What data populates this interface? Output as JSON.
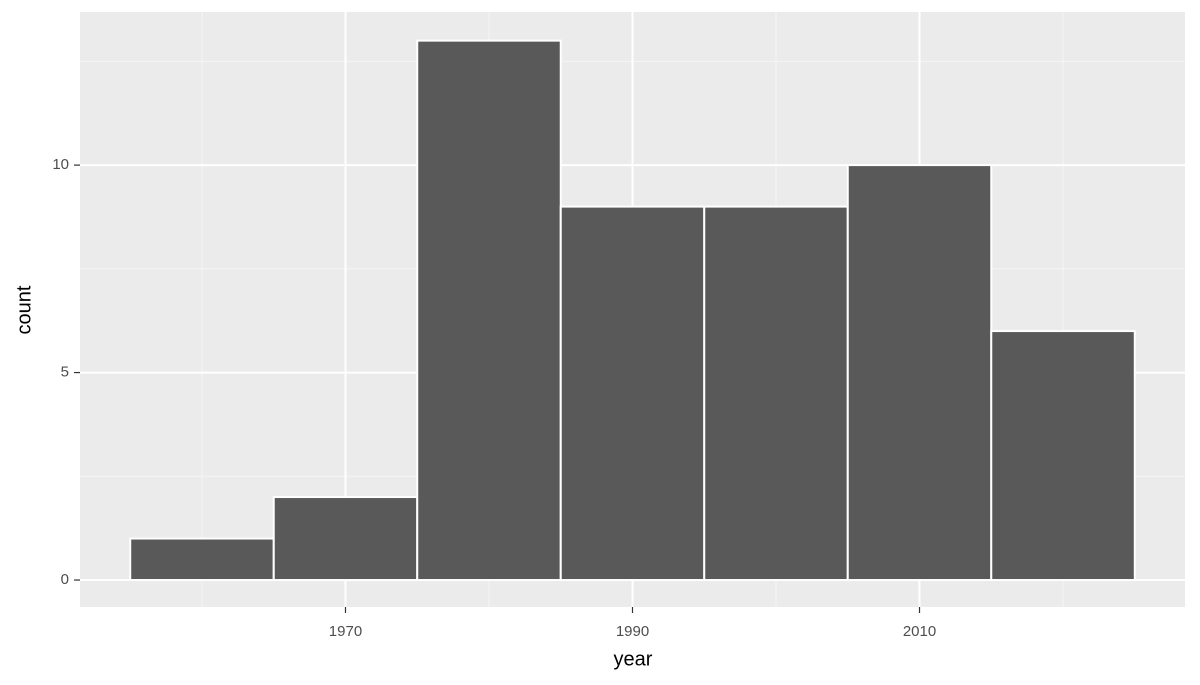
{
  "chart_data": {
    "type": "histogram",
    "x_label": "year",
    "y_label": "count",
    "bins": [
      1955,
      1965,
      1975,
      1985,
      1995,
      2005,
      2015,
      2025
    ],
    "values": [
      1,
      2,
      13,
      9,
      9,
      10,
      6
    ],
    "color": "#595959",
    "xlim": [
      1951.5,
      2028.5
    ],
    "ylim": [
      -0.65,
      13.69
    ],
    "xticks": [
      1970,
      1990,
      2010
    ],
    "yticks": [
      0,
      5,
      10
    ],
    "x_minor_grid": [
      1960,
      1980,
      2000,
      2020
    ],
    "y_minor_grid": [
      2.5,
      7.5,
      12.5
    ],
    "grid": true
  }
}
